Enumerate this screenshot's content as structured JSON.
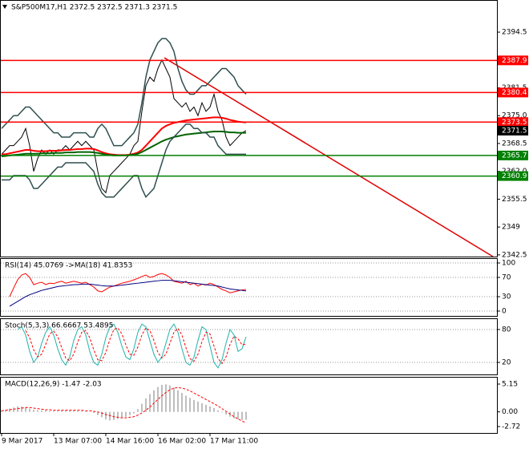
{
  "chart_data": [
    {
      "type": "line",
      "title": "S&P500M17,H1  2372.5 2372.5 2371.3 2371.5",
      "categories": [
        "9 Mar 2017",
        null,
        null,
        null,
        null,
        null,
        null,
        null,
        null,
        null,
        null,
        null,
        null,
        "13 Mar 07:00",
        null,
        null,
        null,
        null,
        null,
        null,
        null,
        null,
        null,
        null,
        null,
        null,
        "14 Mar 16:00",
        null,
        null,
        null,
        null,
        null,
        null,
        null,
        null,
        null,
        null,
        null,
        null,
        "16 Mar 02:00",
        null,
        null,
        null,
        null,
        null,
        null,
        null,
        null,
        null,
        null,
        null,
        null,
        "17 Mar 11:00",
        null,
        null,
        null,
        null,
        null,
        null,
        null,
        null,
        null
      ],
      "ylim": [
        2342.1,
        2402.0
      ],
      "yticks": [
        2394.5,
        2381.5,
        {
          "value": 2375,
          "label": "2375.0"
        },
        2368.5,
        {
          "value": 2362,
          "label": "2362.0"
        },
        2355.5,
        2349.0,
        2342.5
      ],
      "grid": false,
      "levels": [
        {
          "value": 2387.9,
          "color": "#ff0000"
        },
        {
          "value": 2380.4,
          "color": "#ff0000"
        },
        {
          "value": 2373.5,
          "color": "#ff0000"
        },
        {
          "value": 2365.7,
          "color": "#008000"
        },
        {
          "value": 2360.9,
          "color": "#008000"
        }
      ],
      "last": 2371.5,
      "series": [
        {
          "color": "#000000",
          "type": "line",
          "values": [
            2366,
            2367,
            2368,
            2368,
            2369,
            2370,
            2372,
            2368,
            2362,
            2365,
            2367,
            2366,
            2367,
            2366,
            2367,
            2367,
            2368,
            2367,
            2368,
            2369,
            2368,
            2369,
            2368,
            2367,
            2362,
            2358,
            2357,
            2361,
            2362,
            2363,
            2364,
            2365,
            2366,
            2368,
            2369,
            2376,
            2382,
            2384,
            2383,
            2386,
            2388,
            2386,
            2384,
            2379,
            2378,
            2377,
            2378,
            2376,
            2377,
            2375,
            2378,
            2376,
            2377,
            2380,
            2376,
            2374,
            2370,
            2368,
            2369,
            2370,
            2371,
            2371.5
          ]
        },
        {
          "color": "#ff0000",
          "type": "line",
          "width": 2,
          "values": [
            2366,
            2366,
            2366.2,
            2366.4,
            2366.6,
            2366.8,
            2367,
            2367,
            2366.8,
            2366.7,
            2366.7,
            2366.7,
            2366.8,
            2366.8,
            2366.8,
            2366.9,
            2367,
            2367,
            2367.1,
            2367.2,
            2367.2,
            2367.3,
            2367.3,
            2367.2,
            2366.9,
            2366.5,
            2366.2,
            2366,
            2365.9,
            2365.8,
            2365.8,
            2365.8,
            2365.9,
            2366.1,
            2366.4,
            2367,
            2368,
            2369,
            2370,
            2371,
            2372,
            2372.6,
            2373,
            2373.3,
            2373.5,
            2373.7,
            2373.9,
            2374,
            2374.1,
            2374.2,
            2374.3,
            2374.4,
            2374.5,
            2374.6,
            2374.6,
            2374.5,
            2374.3,
            2374,
            2373.8,
            2373.6,
            2373.5,
            2373.4
          ]
        },
        {
          "color": "#006400",
          "type": "line",
          "width": 2,
          "values": [
            2365.5,
            2365.6,
            2365.7,
            2365.8,
            2365.9,
            2366,
            2366.1,
            2366.1,
            2366.1,
            2366.1,
            2366.2,
            2366.2,
            2366.2,
            2366.3,
            2366.3,
            2366.3,
            2366.4,
            2366.4,
            2366.4,
            2366.5,
            2366.5,
            2366.5,
            2366.5,
            2366.4,
            2366.3,
            2366.1,
            2365.9,
            2365.8,
            2365.7,
            2365.7,
            2365.7,
            2365.7,
            2365.8,
            2365.9,
            2366.1,
            2366.5,
            2367,
            2367.5,
            2368,
            2368.5,
            2369,
            2369.4,
            2369.7,
            2370,
            2370.2,
            2370.4,
            2370.6,
            2370.7,
            2370.8,
            2370.9,
            2371,
            2371.1,
            2371.2,
            2371.3,
            2371.3,
            2371.3,
            2371.2,
            2371.1,
            2371.1,
            2371,
            2371,
            2371
          ]
        },
        {
          "color": "#2f4f4f",
          "type": "line",
          "width": 1.5,
          "values": [
            2372,
            2373,
            2374,
            2375,
            2375,
            2376,
            2377,
            2377,
            2376,
            2375,
            2374,
            2373,
            2372,
            2371,
            2371,
            2370,
            2370,
            2370,
            2371,
            2371,
            2371,
            2371,
            2370,
            2370,
            2372,
            2373,
            2372,
            2370,
            2368,
            2368,
            2368,
            2369,
            2370,
            2371,
            2373,
            2378,
            2384,
            2388,
            2390,
            2392,
            2393,
            2393,
            2392,
            2390,
            2386,
            2383,
            2381,
            2380,
            2380,
            2381,
            2382,
            2382,
            2383,
            2384,
            2385,
            2386,
            2386,
            2385,
            2384,
            2382,
            2381,
            2380
          ]
        },
        {
          "color": "#2f4f4f",
          "type": "line",
          "width": 1.5,
          "values": [
            2360,
            2360,
            2360,
            2361,
            2361,
            2361,
            2361,
            2360,
            2358,
            2358,
            2359,
            2360,
            2361,
            2362,
            2363,
            2363,
            2364,
            2364,
            2364,
            2364,
            2364,
            2364,
            2363,
            2362,
            2359,
            2357,
            2356,
            2356,
            2356,
            2357,
            2358,
            2359,
            2360,
            2361,
            2361,
            2358,
            2356,
            2357,
            2358,
            2361,
            2364,
            2367,
            2369,
            2370,
            2371,
            2372,
            2373,
            2373,
            2372,
            2372,
            2371,
            2371,
            2370,
            2370,
            2368,
            2367,
            2366,
            2366,
            2366,
            2366,
            2366,
            2366
          ]
        }
      ]
    },
    {
      "type": "line",
      "title": "RSI(14) 45.0769  ->MA(18) 41.8353",
      "ylim": [
        -11.7,
        110
      ],
      "yticks": [
        100,
        70,
        30,
        0
      ],
      "grid": true,
      "series": [
        {
          "color": "#ff0000",
          "type": "line",
          "values": [
            null,
            null,
            30,
            48,
            65,
            75,
            78,
            70,
            55,
            58,
            60,
            55,
            58,
            57,
            60,
            62,
            58,
            60,
            62,
            60,
            58,
            60,
            55,
            50,
            42,
            40,
            45,
            50,
            52,
            55,
            58,
            60,
            62,
            65,
            68,
            72,
            75,
            70,
            72,
            76,
            78,
            75,
            70,
            62,
            60,
            58,
            62,
            55,
            58,
            52,
            56,
            54,
            58,
            55,
            50,
            45,
            42,
            38,
            40,
            42,
            44,
            45.0769
          ]
        },
        {
          "color": "#000080",
          "type": "line",
          "values": [
            null,
            null,
            10,
            15,
            20,
            25,
            30,
            34,
            37,
            40,
            43,
            45,
            47,
            49,
            51,
            52,
            53,
            54,
            55,
            55,
            56,
            56,
            56,
            55,
            54,
            53,
            52,
            52,
            52,
            53,
            54,
            55,
            56,
            57,
            58,
            59,
            60,
            61,
            62,
            63,
            64,
            64,
            64,
            63,
            62,
            61,
            60,
            59,
            58,
            57,
            56,
            55,
            54,
            53,
            52,
            50,
            48,
            46,
            45,
            44,
            43,
            41.8353
          ]
        }
      ]
    },
    {
      "type": "line",
      "title": "Stoch(5,3,3) 66.6667 53.4895",
      "ylim": [
        -3.4,
        100.5
      ],
      "yticks": [
        80,
        20
      ],
      "grid": true,
      "series": [
        {
          "color": "#20b2aa",
          "type": "line",
          "values": [
            null,
            null,
            null,
            null,
            80,
            85,
            70,
            40,
            20,
            30,
            55,
            75,
            85,
            70,
            45,
            25,
            15,
            30,
            60,
            80,
            85,
            70,
            40,
            20,
            15,
            35,
            65,
            85,
            90,
            75,
            50,
            30,
            25,
            45,
            75,
            90,
            85,
            60,
            35,
            20,
            30,
            55,
            80,
            90,
            75,
            45,
            20,
            15,
            30,
            60,
            85,
            80,
            50,
            20,
            10,
            25,
            55,
            80,
            70,
            40,
            45,
            66.6667
          ]
        },
        {
          "color": "#ff0000",
          "type": "line",
          "dash": true,
          "values": [
            null,
            null,
            null,
            null,
            null,
            null,
            78,
            65,
            43,
            30,
            35,
            53,
            72,
            77,
            67,
            47,
            28,
            23,
            35,
            57,
            75,
            78,
            65,
            43,
            25,
            23,
            38,
            62,
            80,
            83,
            72,
            52,
            35,
            33,
            48,
            70,
            83,
            78,
            60,
            38,
            28,
            35,
            55,
            75,
            82,
            70,
            47,
            27,
            22,
            35,
            58,
            75,
            72,
            50,
            27,
            18,
            30,
            53,
            68,
            63,
            52,
            53.4895
          ]
        }
      ]
    },
    {
      "type": "bar",
      "title": "MACD(12,26,9) -1.47 -2.03",
      "ylim": [
        -3.91,
        6.49
      ],
      "yticks": [
        5.15,
        {
          "value": 0,
          "label": "0.00"
        },
        -2.72
      ],
      "grid": false,
      "series": [
        {
          "color": "#a9a9a9",
          "type": "bar",
          "values": [
            0.3,
            0.4,
            0.6,
            0.8,
            1.0,
            1.0,
            0.9,
            0.6,
            0.4,
            0.3,
            0.3,
            0.3,
            0.2,
            0.2,
            0.2,
            0.3,
            0.3,
            0.3,
            0.3,
            0.2,
            0.2,
            0.1,
            0,
            -0.2,
            -0.6,
            -1.0,
            -1.4,
            -1.6,
            -1.5,
            -1.3,
            -1.1,
            -0.9,
            -0.6,
            -0.3,
            0.5,
            1.5,
            2.5,
            3.3,
            4.0,
            4.6,
            5.0,
            5.1,
            4.9,
            4.5,
            4.0,
            3.5,
            3.0,
            2.6,
            2.2,
            1.9,
            1.6,
            1.3,
            1.0,
            0.7,
            0.3,
            -0.1,
            -0.5,
            -0.9,
            -1.2,
            -1.4,
            -1.5,
            -1.47
          ]
        },
        {
          "color": "#ff0000",
          "type": "line",
          "dash": true,
          "values": [
            0.2,
            0.3,
            0.4,
            0.5,
            0.6,
            0.7,
            0.8,
            0.8,
            0.7,
            0.6,
            0.5,
            0.4,
            0.4,
            0.3,
            0.3,
            0.3,
            0.3,
            0.3,
            0.3,
            0.3,
            0.3,
            0.2,
            0.2,
            0.1,
            0,
            -0.2,
            -0.5,
            -0.7,
            -0.9,
            -1.0,
            -1.1,
            -1.1,
            -1.0,
            -0.9,
            -0.6,
            -0.2,
            0.3,
            0.9,
            1.6,
            2.3,
            3.0,
            3.6,
            4.1,
            4.4,
            4.5,
            4.4,
            4.2,
            3.9,
            3.5,
            3.1,
            2.7,
            2.3,
            1.9,
            1.5,
            1.1,
            0.6,
            0.1,
            -0.4,
            -0.9,
            -1.3,
            -1.7,
            -2.03
          ]
        }
      ]
    }
  ]
}
